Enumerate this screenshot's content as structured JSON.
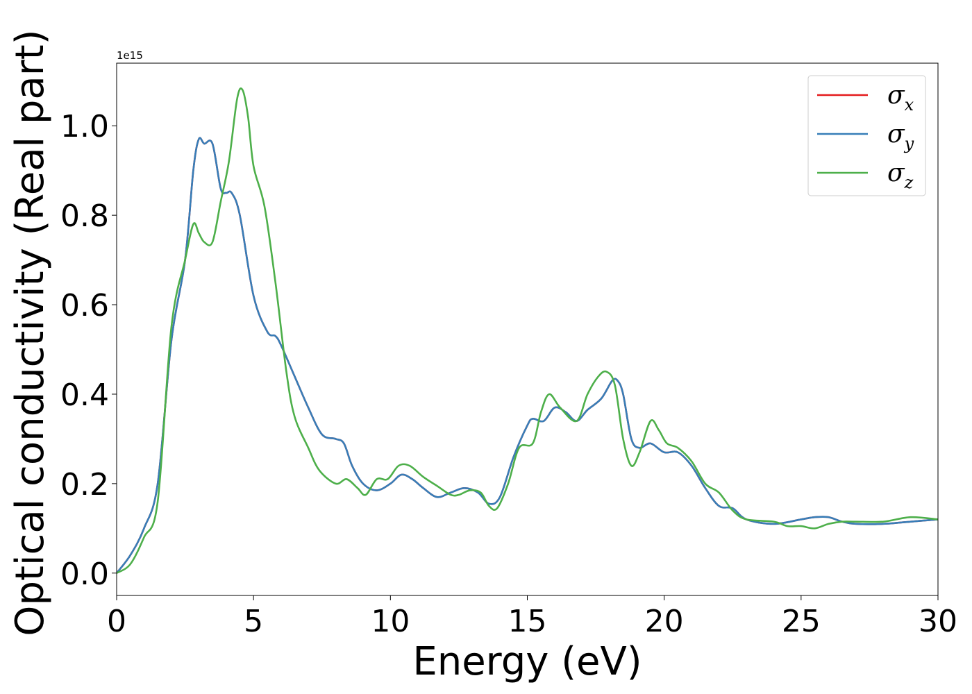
{
  "chart_data": {
    "type": "line",
    "xlabel": "Energy (eV)",
    "ylabel": "Optical conductivity (Real part)",
    "y_offset_label": "1e15",
    "xlim": [
      0,
      30
    ],
    "ylim": [
      -0.05,
      1.14
    ],
    "x_ticks": [
      0,
      5,
      10,
      15,
      20,
      25,
      30
    ],
    "x_tick_labels": [
      "0",
      "5",
      "10",
      "15",
      "20",
      "25",
      "30"
    ],
    "y_ticks": [
      0.0,
      0.2,
      0.4,
      0.6,
      0.8,
      1.0
    ],
    "y_tick_labels": [
      "0.0",
      "0.2",
      "0.4",
      "0.6",
      "0.8",
      "1.0"
    ],
    "legend_position": "top-right",
    "grid": false,
    "series": [
      {
        "name": "σx",
        "legend_symbol": "σ",
        "legend_sub": "x",
        "color": "#e41a1c",
        "points": [
          [
            0,
            0
          ],
          [
            0.5,
            0.04
          ],
          [
            1.0,
            0.1
          ],
          [
            1.5,
            0.2
          ],
          [
            2.0,
            0.52
          ],
          [
            2.5,
            0.7
          ],
          [
            2.8,
            0.9
          ],
          [
            3.0,
            0.97
          ],
          [
            3.2,
            0.96
          ],
          [
            3.5,
            0.96
          ],
          [
            3.8,
            0.86
          ],
          [
            4.0,
            0.85
          ],
          [
            4.2,
            0.85
          ],
          [
            4.5,
            0.8
          ],
          [
            5.0,
            0.62
          ],
          [
            5.5,
            0.54
          ],
          [
            5.8,
            0.53
          ],
          [
            6.0,
            0.51
          ],
          [
            6.5,
            0.44
          ],
          [
            7.0,
            0.37
          ],
          [
            7.5,
            0.31
          ],
          [
            8.0,
            0.3
          ],
          [
            8.3,
            0.29
          ],
          [
            8.6,
            0.24
          ],
          [
            9.0,
            0.2
          ],
          [
            9.5,
            0.185
          ],
          [
            10.0,
            0.2
          ],
          [
            10.4,
            0.22
          ],
          [
            10.8,
            0.21
          ],
          [
            11.2,
            0.19
          ],
          [
            11.7,
            0.17
          ],
          [
            12.2,
            0.18
          ],
          [
            12.7,
            0.19
          ],
          [
            13.2,
            0.18
          ],
          [
            13.6,
            0.155
          ],
          [
            14.0,
            0.17
          ],
          [
            14.5,
            0.26
          ],
          [
            15.0,
            0.33
          ],
          [
            15.2,
            0.345
          ],
          [
            15.6,
            0.34
          ],
          [
            16.0,
            0.37
          ],
          [
            16.4,
            0.36
          ],
          [
            16.8,
            0.34
          ],
          [
            17.2,
            0.365
          ],
          [
            17.7,
            0.39
          ],
          [
            18.1,
            0.43
          ],
          [
            18.3,
            0.43
          ],
          [
            18.5,
            0.4
          ],
          [
            18.8,
            0.3
          ],
          [
            19.1,
            0.28
          ],
          [
            19.5,
            0.29
          ],
          [
            20.0,
            0.27
          ],
          [
            20.5,
            0.27
          ],
          [
            21.0,
            0.24
          ],
          [
            21.5,
            0.19
          ],
          [
            22.0,
            0.15
          ],
          [
            22.5,
            0.145
          ],
          [
            23.0,
            0.12
          ],
          [
            24.0,
            0.11
          ],
          [
            25.0,
            0.12
          ],
          [
            25.5,
            0.125
          ],
          [
            26.0,
            0.125
          ],
          [
            26.5,
            0.115
          ],
          [
            27.0,
            0.11
          ],
          [
            28.0,
            0.11
          ],
          [
            29.0,
            0.115
          ],
          [
            30.0,
            0.12
          ]
        ]
      },
      {
        "name": "σy",
        "legend_symbol": "σ",
        "legend_sub": "y",
        "color": "#377eb8",
        "points": [
          [
            0,
            0
          ],
          [
            0.5,
            0.04
          ],
          [
            1.0,
            0.1
          ],
          [
            1.5,
            0.2
          ],
          [
            2.0,
            0.52
          ],
          [
            2.5,
            0.7
          ],
          [
            2.8,
            0.9
          ],
          [
            3.0,
            0.97
          ],
          [
            3.2,
            0.96
          ],
          [
            3.5,
            0.96
          ],
          [
            3.8,
            0.86
          ],
          [
            4.0,
            0.85
          ],
          [
            4.2,
            0.85
          ],
          [
            4.5,
            0.8
          ],
          [
            5.0,
            0.62
          ],
          [
            5.5,
            0.54
          ],
          [
            5.8,
            0.53
          ],
          [
            6.0,
            0.51
          ],
          [
            6.5,
            0.44
          ],
          [
            7.0,
            0.37
          ],
          [
            7.5,
            0.31
          ],
          [
            8.0,
            0.3
          ],
          [
            8.3,
            0.29
          ],
          [
            8.6,
            0.24
          ],
          [
            9.0,
            0.2
          ],
          [
            9.5,
            0.185
          ],
          [
            10.0,
            0.2
          ],
          [
            10.4,
            0.22
          ],
          [
            10.8,
            0.21
          ],
          [
            11.2,
            0.19
          ],
          [
            11.7,
            0.17
          ],
          [
            12.2,
            0.18
          ],
          [
            12.7,
            0.19
          ],
          [
            13.2,
            0.18
          ],
          [
            13.6,
            0.155
          ],
          [
            14.0,
            0.17
          ],
          [
            14.5,
            0.26
          ],
          [
            15.0,
            0.33
          ],
          [
            15.2,
            0.345
          ],
          [
            15.6,
            0.34
          ],
          [
            16.0,
            0.37
          ],
          [
            16.4,
            0.36
          ],
          [
            16.8,
            0.34
          ],
          [
            17.2,
            0.365
          ],
          [
            17.7,
            0.39
          ],
          [
            18.1,
            0.43
          ],
          [
            18.3,
            0.43
          ],
          [
            18.5,
            0.4
          ],
          [
            18.8,
            0.3
          ],
          [
            19.1,
            0.28
          ],
          [
            19.5,
            0.29
          ],
          [
            20.0,
            0.27
          ],
          [
            20.5,
            0.27
          ],
          [
            21.0,
            0.24
          ],
          [
            21.5,
            0.19
          ],
          [
            22.0,
            0.15
          ],
          [
            22.5,
            0.145
          ],
          [
            23.0,
            0.12
          ],
          [
            24.0,
            0.11
          ],
          [
            25.0,
            0.12
          ],
          [
            25.5,
            0.125
          ],
          [
            26.0,
            0.125
          ],
          [
            26.5,
            0.115
          ],
          [
            27.0,
            0.11
          ],
          [
            28.0,
            0.11
          ],
          [
            29.0,
            0.115
          ],
          [
            30.0,
            0.12
          ]
        ]
      },
      {
        "name": "σz",
        "legend_symbol": "σ",
        "legend_sub": "z",
        "color": "#4daf4a",
        "points": [
          [
            0,
            0
          ],
          [
            0.5,
            0.02
          ],
          [
            1.0,
            0.08
          ],
          [
            1.5,
            0.16
          ],
          [
            2.0,
            0.55
          ],
          [
            2.5,
            0.7
          ],
          [
            2.8,
            0.78
          ],
          [
            3.0,
            0.76
          ],
          [
            3.2,
            0.74
          ],
          [
            3.5,
            0.74
          ],
          [
            3.8,
            0.83
          ],
          [
            4.1,
            0.92
          ],
          [
            4.4,
            1.06
          ],
          [
            4.6,
            1.08
          ],
          [
            4.8,
            1.02
          ],
          [
            5.0,
            0.91
          ],
          [
            5.4,
            0.82
          ],
          [
            5.8,
            0.65
          ],
          [
            6.2,
            0.45
          ],
          [
            6.5,
            0.35
          ],
          [
            7.0,
            0.28
          ],
          [
            7.4,
            0.23
          ],
          [
            8.0,
            0.2
          ],
          [
            8.4,
            0.21
          ],
          [
            8.8,
            0.19
          ],
          [
            9.1,
            0.175
          ],
          [
            9.5,
            0.21
          ],
          [
            9.9,
            0.21
          ],
          [
            10.3,
            0.24
          ],
          [
            10.7,
            0.24
          ],
          [
            11.2,
            0.215
          ],
          [
            11.7,
            0.195
          ],
          [
            12.2,
            0.175
          ],
          [
            12.5,
            0.175
          ],
          [
            12.9,
            0.185
          ],
          [
            13.3,
            0.18
          ],
          [
            13.6,
            0.15
          ],
          [
            13.9,
            0.145
          ],
          [
            14.3,
            0.2
          ],
          [
            14.7,
            0.28
          ],
          [
            15.2,
            0.29
          ],
          [
            15.5,
            0.36
          ],
          [
            15.8,
            0.4
          ],
          [
            16.2,
            0.37
          ],
          [
            16.8,
            0.34
          ],
          [
            17.2,
            0.4
          ],
          [
            17.6,
            0.44
          ],
          [
            17.9,
            0.45
          ],
          [
            18.2,
            0.42
          ],
          [
            18.5,
            0.3
          ],
          [
            18.8,
            0.24
          ],
          [
            19.1,
            0.27
          ],
          [
            19.5,
            0.34
          ],
          [
            19.8,
            0.32
          ],
          [
            20.1,
            0.29
          ],
          [
            20.5,
            0.28
          ],
          [
            21.0,
            0.25
          ],
          [
            21.5,
            0.2
          ],
          [
            22.0,
            0.18
          ],
          [
            22.5,
            0.14
          ],
          [
            23.0,
            0.12
          ],
          [
            24.0,
            0.115
          ],
          [
            24.5,
            0.105
          ],
          [
            25.0,
            0.105
          ],
          [
            25.5,
            0.1
          ],
          [
            26.0,
            0.11
          ],
          [
            26.5,
            0.115
          ],
          [
            27.0,
            0.115
          ],
          [
            28.0,
            0.115
          ],
          [
            29.0,
            0.125
          ],
          [
            30.0,
            0.12
          ]
        ]
      }
    ]
  }
}
